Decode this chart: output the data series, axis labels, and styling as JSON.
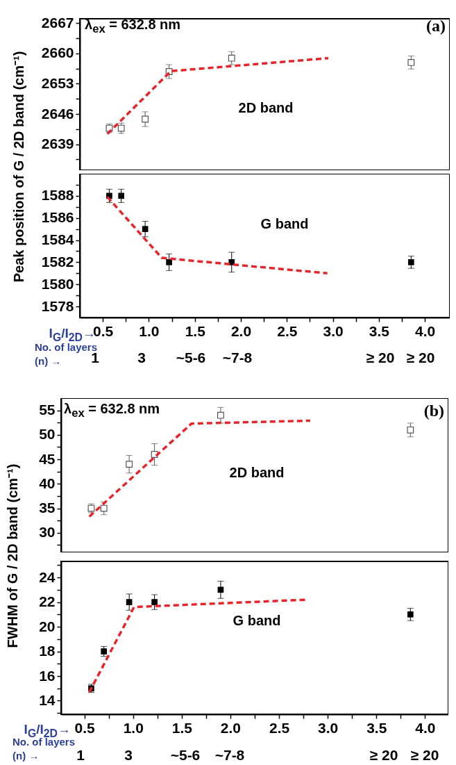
{
  "chart_data": [
    {
      "type": "scatter",
      "ylabel": "Peak position of G / 2D band (cm⁻¹)",
      "annotations": [
        "λ$_{ex}$ = 632.8 nm",
        "(a)",
        "2D band"
      ],
      "tick_labels": "y",
      "xlim": [
        0.25,
        4.27
      ],
      "ylim": [
        2633,
        2668
      ],
      "yticks": [
        2639,
        2646,
        2653,
        2660,
        2667,
        {
          "value": 2635.5,
          "label": null
        },
        {
          "value": 2642.5,
          "label": null
        },
        {
          "value": 2649.5,
          "label": null
        },
        {
          "value": 2656.5,
          "label": null
        },
        {
          "value": 2663.5,
          "label": null
        }
      ],
      "series": [
        {
          "type": "scatter",
          "marker": "square",
          "color": "#555555",
          "x": [
            0.57,
            0.7,
            0.96,
            1.22,
            1.9,
            3.85
          ],
          "values": [
            2642.7,
            2642.7,
            2644.8,
            2655.8,
            2658.9,
            2657.9
          ],
          "errors": [
            1.0,
            1.2,
            1.7,
            1.6,
            1.5,
            1.5
          ]
        },
        {
          "type": "line",
          "color": "#e8242a",
          "line_style": "dashed",
          "x": [
            0.55,
            1.24,
            2.95
          ],
          "values": [
            2641.4,
            2655.9,
            2658.9
          ]
        }
      ]
    },
    {
      "type": "scatter",
      "xlabel": "I$_{G}$/I$_{2D}$→",
      "annotations": [
        "G band",
        "No. of layers (n) →",
        "1",
        "3",
        "~5-6",
        "~7-8",
        "≥ 20",
        "≥ 20"
      ],
      "xlim": [
        0.25,
        4.27
      ],
      "ylim": [
        1577,
        1590
      ],
      "xticks": [
        {
          "value": 0.5,
          "label": "0.5"
        },
        {
          "value": 1,
          "label": "1.0"
        },
        {
          "value": 1.5,
          "label": "1.5"
        },
        {
          "value": 2,
          "label": "2.0"
        },
        {
          "value": 2.5,
          "label": "2.5"
        },
        {
          "value": 3,
          "label": "3.0"
        },
        {
          "value": 3.5,
          "label": "3.5"
        },
        {
          "value": 4,
          "label": "4.0"
        },
        {
          "value": 0.75,
          "label": null
        },
        {
          "value": 1.25,
          "label": null
        },
        {
          "value": 1.75,
          "label": null
        },
        {
          "value": 2.25,
          "label": null
        },
        {
          "value": 2.75,
          "label": null
        },
        {
          "value": 3.25,
          "label": null
        },
        {
          "value": 3.75,
          "label": null
        }
      ],
      "yticks": [
        1578,
        1580,
        1582,
        1584,
        1586,
        1588,
        {
          "value": 1579,
          "label": null
        },
        {
          "value": 1581,
          "label": null
        },
        {
          "value": 1583,
          "label": null
        },
        {
          "value": 1585,
          "label": null
        },
        {
          "value": 1587,
          "label": null
        },
        {
          "value": 1589,
          "label": null
        }
      ],
      "series": [
        {
          "type": "scatter",
          "marker": "square",
          "color": "#000000",
          "x": [
            0.57,
            0.7,
            0.96,
            1.22,
            1.9,
            3.85
          ],
          "values": [
            1588,
            1588,
            1585,
            1582,
            1582,
            1582
          ],
          "errors": [
            0.6,
            0.6,
            0.7,
            0.75,
            0.9,
            0.55
          ]
        },
        {
          "type": "line",
          "color": "#e8242a",
          "line_style": "dashed",
          "x": [
            0.55,
            1.14,
            1.9,
            2.94
          ],
          "values": [
            1587.9,
            1582.4,
            1581.8,
            1581.0
          ]
        }
      ]
    },
    {
      "type": "scatter",
      "ylabel": "FWHM of G / 2D band (cm⁻¹)",
      "annotations": [
        "λ$_{ex}$ = 632.8 nm",
        "(b)",
        "2D band"
      ],
      "tick_labels": "y",
      "xlim": [
        0.26,
        4.24
      ],
      "ylim": [
        26,
        57.5
      ],
      "yticks": [
        30,
        35,
        40,
        45,
        50,
        55,
        {
          "value": 27.5,
          "label": null
        },
        {
          "value": 32.5,
          "label": null
        },
        {
          "value": 37.5,
          "label": null
        },
        {
          "value": 42.5,
          "label": null
        },
        {
          "value": 47.5,
          "label": null
        },
        {
          "value": 52.5,
          "label": null
        }
      ],
      "series": [
        {
          "type": "scatter",
          "marker": "square",
          "color": "#555555",
          "x": [
            0.57,
            0.7,
            0.96,
            1.22,
            1.9,
            3.85
          ],
          "values": [
            35,
            35,
            44,
            46,
            54,
            51
          ],
          "errors": [
            0.9,
            1.3,
            1.8,
            2.2,
            1.6,
            1.4
          ]
        },
        {
          "type": "line",
          "color": "#e8242a",
          "line_style": "dashed",
          "x": [
            0.55,
            1.6,
            2.82
          ],
          "values": [
            33.3,
            52.3,
            52.9
          ]
        }
      ]
    },
    {
      "type": "scatter",
      "xlabel": "I$_{G}$/I$_{2D}$→",
      "annotations": [
        "G band",
        "No. of layers (n) →",
        "1",
        "3",
        "~5-6",
        "~7-8",
        "≥ 20",
        "≥ 20"
      ],
      "xlim": [
        0.26,
        4.24
      ],
      "ylim": [
        12.9,
        25.3
      ],
      "xticks": [
        {
          "value": 0.5,
          "label": "0.5"
        },
        {
          "value": 1,
          "label": "1.0"
        },
        {
          "value": 1.5,
          "label": "1.5"
        },
        {
          "value": 2,
          "label": "2.0"
        },
        {
          "value": 2.5,
          "label": "2.5"
        },
        {
          "value": 3,
          "label": "3.0"
        },
        {
          "value": 3.5,
          "label": "3.5"
        },
        {
          "value": 4,
          "label": "4.0"
        },
        {
          "value": 0.75,
          "label": null
        },
        {
          "value": 1.25,
          "label": null
        },
        {
          "value": 1.75,
          "label": null
        },
        {
          "value": 2.25,
          "label": null
        },
        {
          "value": 2.75,
          "label": null
        },
        {
          "value": 3.25,
          "label": null
        },
        {
          "value": 3.75,
          "label": null
        }
      ],
      "yticks": [
        14,
        16,
        18,
        20,
        22,
        24,
        {
          "value": 13,
          "label": null
        },
        {
          "value": 15,
          "label": null
        },
        {
          "value": 17,
          "label": null
        },
        {
          "value": 19,
          "label": null
        },
        {
          "value": 21,
          "label": null
        },
        {
          "value": 23,
          "label": null
        },
        {
          "value": 25,
          "label": null
        }
      ],
      "series": [
        {
          "type": "scatter",
          "marker": "square",
          "color": "#000000",
          "x": [
            0.57,
            0.7,
            0.96,
            1.22,
            1.9,
            3.85
          ],
          "values": [
            15,
            18,
            22,
            22,
            23,
            21
          ],
          "errors": [
            0.33,
            0.4,
            0.66,
            0.6,
            0.7,
            0.5
          ]
        },
        {
          "type": "line",
          "color": "#e8242a",
          "line_style": "dashed",
          "x": [
            0.55,
            1.01,
            2.79
          ],
          "values": [
            14.7,
            21.6,
            22.2
          ]
        }
      ]
    }
  ]
}
